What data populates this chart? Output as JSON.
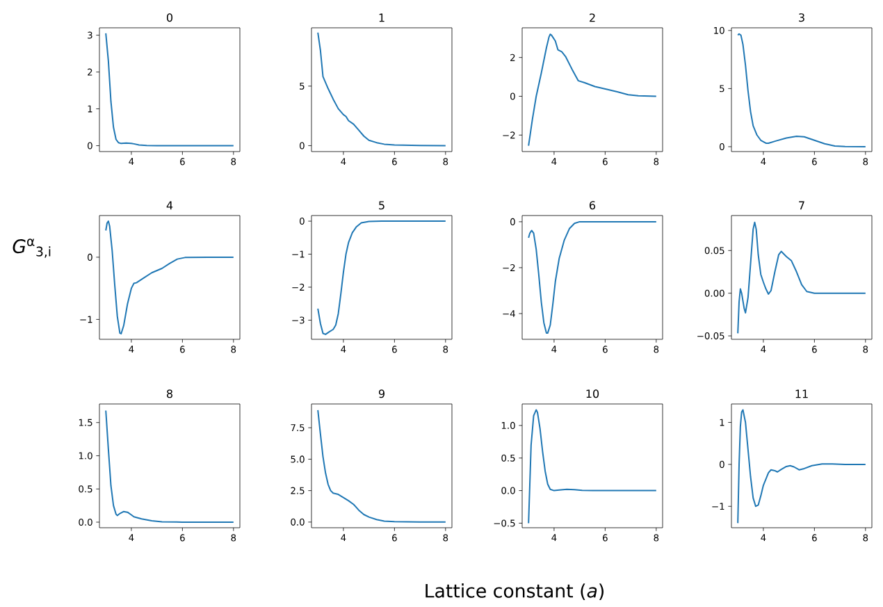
{
  "chart_data": [
    {
      "type": "line",
      "title": "0",
      "color": "#1f77b4",
      "xlim": [
        2.75,
        8.25
      ],
      "ylim": [
        -0.16,
        3.2
      ],
      "xticks": [
        4,
        6,
        8
      ],
      "yticks": [
        0,
        1,
        2,
        3
      ],
      "x": [
        3,
        3.1,
        3.2,
        3.3,
        3.4,
        3.5,
        3.6,
        3.8,
        4.0,
        4.1,
        4.3,
        4.6,
        5,
        6,
        8
      ],
      "values": [
        3.05,
        2.3,
        1.2,
        0.5,
        0.17,
        0.08,
        0.06,
        0.07,
        0.06,
        0.05,
        0.02,
        0.005,
        0,
        0,
        0
      ]
    },
    {
      "type": "line",
      "title": "1",
      "color": "#1f77b4",
      "xlim": [
        2.75,
        8.25
      ],
      "ylim": [
        -0.5,
        9.9
      ],
      "xticks": [
        4,
        6,
        8
      ],
      "yticks": [
        0,
        5
      ],
      "x": [
        3,
        3.1,
        3.2,
        3.4,
        3.6,
        3.8,
        4.0,
        4.1,
        4.2,
        4.4,
        4.6,
        4.8,
        5.0,
        5.3,
        5.6,
        6,
        7,
        8
      ],
      "values": [
        9.5,
        8.0,
        5.8,
        4.8,
        3.9,
        3.1,
        2.6,
        2.45,
        2.1,
        1.8,
        1.3,
        0.8,
        0.45,
        0.25,
        0.12,
        0.05,
        0.01,
        0
      ]
    },
    {
      "type": "line",
      "title": "2",
      "color": "#1f77b4",
      "xlim": [
        2.75,
        8.25
      ],
      "ylim": [
        -2.85,
        3.53
      ],
      "xticks": [
        4,
        6,
        8
      ],
      "yticks": [
        {
          "value": -2,
          "label": "−2"
        },
        0,
        2
      ],
      "x": [
        3,
        3.15,
        3.3,
        3.5,
        3.7,
        3.8,
        3.85,
        3.9,
        4.05,
        4.15,
        4.3,
        4.45,
        4.7,
        4.95,
        5.2,
        5.6,
        6.1,
        6.5,
        6.9,
        7.3,
        8
      ],
      "values": [
        -2.55,
        -1.2,
        0.0,
        1.2,
        2.5,
        3.05,
        3.2,
        3.15,
        2.85,
        2.4,
        2.3,
        2.05,
        1.4,
        0.8,
        0.7,
        0.5,
        0.35,
        0.22,
        0.08,
        0.03,
        0
      ]
    },
    {
      "type": "line",
      "title": "3",
      "color": "#1f77b4",
      "xlim": [
        2.75,
        8.25
      ],
      "ylim": [
        -0.42,
        10.23
      ],
      "xticks": [
        4,
        6,
        8
      ],
      "yticks": [
        0,
        5,
        10
      ],
      "x": [
        3,
        3.05,
        3.12,
        3.2,
        3.3,
        3.4,
        3.5,
        3.6,
        3.75,
        3.9,
        4.1,
        4.2,
        4.5,
        4.9,
        5.3,
        5.6,
        6,
        6.4,
        6.8,
        7.2,
        8
      ],
      "values": [
        9.6,
        9.7,
        9.6,
        8.8,
        7.0,
        4.8,
        3.0,
        1.8,
        1.0,
        0.55,
        0.3,
        0.3,
        0.5,
        0.75,
        0.9,
        0.85,
        0.55,
        0.25,
        0.06,
        0.01,
        0
      ]
    },
    {
      "type": "line",
      "title": "4",
      "ylabel": "*G*$^{α}$$_{3,i}$",
      "color": "#1f77b4",
      "xlim": [
        2.75,
        8.25
      ],
      "ylim": [
        -1.32,
        0.67
      ],
      "xticks": [
        4,
        6,
        8
      ],
      "yticks": [
        {
          "value": -1,
          "label": "−1"
        },
        0
      ],
      "x": [
        3,
        3.05,
        3.1,
        3.15,
        3.25,
        3.35,
        3.45,
        3.55,
        3.6,
        3.7,
        3.85,
        4.0,
        4.1,
        4.2,
        4.5,
        4.8,
        5.2,
        5.5,
        5.8,
        6.1,
        7,
        8
      ],
      "values": [
        0.43,
        0.55,
        0.58,
        0.5,
        0.1,
        -0.45,
        -0.95,
        -1.22,
        -1.23,
        -1.1,
        -0.75,
        -0.5,
        -0.42,
        -0.41,
        -0.33,
        -0.25,
        -0.18,
        -0.1,
        -0.03,
        -0.005,
        0,
        0
      ]
    },
    {
      "type": "line",
      "title": "5",
      "color": "#1f77b4",
      "xlim": [
        2.75,
        8.25
      ],
      "ylim": [
        -3.58,
        0.17
      ],
      "xticks": [
        4,
        6,
        8
      ],
      "yticks": [
        {
          "value": -3,
          "label": "−3"
        },
        {
          "value": -2,
          "label": "−2"
        },
        {
          "value": -1,
          "label": "−1"
        },
        0
      ],
      "x": [
        3,
        3.1,
        3.2,
        3.3,
        3.45,
        3.6,
        3.7,
        3.8,
        3.9,
        4.0,
        4.1,
        4.2,
        4.35,
        4.5,
        4.7,
        5.0,
        5.5,
        8
      ],
      "values": [
        -2.65,
        -3.1,
        -3.4,
        -3.43,
        -3.35,
        -3.28,
        -3.15,
        -2.8,
        -2.2,
        -1.55,
        -1.0,
        -0.65,
        -0.35,
        -0.18,
        -0.05,
        -0.01,
        0,
        0
      ]
    },
    {
      "type": "line",
      "title": "6",
      "color": "#1f77b4",
      "xlim": [
        2.75,
        8.25
      ],
      "ylim": [
        -5.12,
        0.27
      ],
      "xticks": [
        4,
        6,
        8
      ],
      "yticks": [
        {
          "value": -4,
          "label": "−4"
        },
        {
          "value": -2,
          "label": "−2"
        },
        0
      ],
      "x": [
        3,
        3.05,
        3.12,
        3.2,
        3.3,
        3.4,
        3.5,
        3.6,
        3.7,
        3.75,
        3.85,
        3.95,
        4.05,
        4.2,
        4.4,
        4.6,
        4.8,
        5.0,
        6,
        8
      ],
      "values": [
        -0.7,
        -0.5,
        -0.38,
        -0.5,
        -1.2,
        -2.3,
        -3.5,
        -4.4,
        -4.85,
        -4.85,
        -4.5,
        -3.6,
        -2.6,
        -1.6,
        -0.8,
        -0.3,
        -0.07,
        0,
        0,
        0
      ]
    },
    {
      "type": "line",
      "title": "7",
      "color": "#1f77b4",
      "xlim": [
        2.75,
        8.25
      ],
      "ylim": [
        -0.054,
        0.091
      ],
      "xticks": [
        4,
        6,
        8
      ],
      "yticks": [
        {
          "value": -0.05,
          "label": "−0.05"
        },
        {
          "value": 0,
          "label": "0.00"
        },
        0.05
      ],
      "x": [
        3,
        3.05,
        3.1,
        3.15,
        3.25,
        3.3,
        3.4,
        3.5,
        3.6,
        3.66,
        3.72,
        3.8,
        3.9,
        4.0,
        4.1,
        4.2,
        4.3,
        4.45,
        4.6,
        4.7,
        4.8,
        4.9,
        5.1,
        5.3,
        5.5,
        5.7,
        6,
        8
      ],
      "values": [
        -0.047,
        -0.01,
        0.005,
        0.0,
        -0.018,
        -0.023,
        -0.005,
        0.035,
        0.075,
        0.083,
        0.075,
        0.045,
        0.022,
        0.013,
        0.005,
        -0.001,
        0.003,
        0.025,
        0.045,
        0.049,
        0.046,
        0.043,
        0.038,
        0.025,
        0.01,
        0.002,
        0,
        0
      ]
    },
    {
      "type": "line",
      "title": "8",
      "color": "#1f77b4",
      "xlim": [
        2.75,
        8.25
      ],
      "ylim": [
        -0.084,
        1.78
      ],
      "xticks": [
        4,
        6,
        8
      ],
      "yticks": [
        {
          "value": 0,
          "label": "0.0"
        },
        0.5,
        {
          "value": 1,
          "label": "1.0"
        },
        1.5
      ],
      "x": [
        3,
        3.1,
        3.2,
        3.3,
        3.4,
        3.45,
        3.55,
        3.7,
        3.85,
        4.0,
        4.1,
        4.4,
        4.8,
        5.2,
        6,
        8
      ],
      "values": [
        1.68,
        1.1,
        0.55,
        0.25,
        0.12,
        0.1,
        0.13,
        0.16,
        0.15,
        0.11,
        0.08,
        0.05,
        0.02,
        0.005,
        0,
        0
      ]
    },
    {
      "type": "line",
      "title": "9",
      "xlabel": "Lattice constant (*a*)",
      "color": "#1f77b4",
      "xlim": [
        2.75,
        8.25
      ],
      "ylim": [
        -0.45,
        9.39
      ],
      "xticks": [
        4,
        6,
        8
      ],
      "yticks": [
        {
          "value": 0,
          "label": "0.0"
        },
        2.5,
        {
          "value": 5,
          "label": "5.0"
        },
        7.5
      ],
      "x": [
        3,
        3.1,
        3.2,
        3.3,
        3.4,
        3.5,
        3.6,
        3.8,
        4.0,
        4.2,
        4.4,
        4.6,
        4.8,
        5.0,
        5.3,
        5.6,
        6,
        7,
        8
      ],
      "values": [
        8.9,
        7.0,
        5.2,
        3.9,
        3.0,
        2.5,
        2.3,
        2.2,
        1.95,
        1.7,
        1.4,
        0.95,
        0.6,
        0.4,
        0.2,
        0.08,
        0.03,
        0,
        0
      ]
    },
    {
      "type": "line",
      "title": "10",
      "color": "#1f77b4",
      "xlim": [
        2.75,
        8.25
      ],
      "ylim": [
        -0.57,
        1.33
      ],
      "xticks": [
        4,
        6,
        8
      ],
      "yticks": [
        {
          "value": -0.5,
          "label": "−0.5"
        },
        {
          "value": 0,
          "label": "0.0"
        },
        0.5,
        {
          "value": 1,
          "label": "1.0"
        }
      ],
      "x": [
        3,
        3.05,
        3.1,
        3.2,
        3.3,
        3.35,
        3.45,
        3.55,
        3.65,
        3.75,
        3.85,
        4.0,
        4.2,
        4.5,
        4.8,
        5.1,
        5.5,
        8
      ],
      "values": [
        -0.5,
        0.1,
        0.7,
        1.15,
        1.24,
        1.2,
        0.95,
        0.6,
        0.3,
        0.1,
        0.02,
        0.0,
        0.01,
        0.02,
        0.015,
        0.003,
        0,
        0
      ]
    },
    {
      "type": "line",
      "title": "11",
      "color": "#1f77b4",
      "xlim": [
        2.75,
        8.25
      ],
      "ylim": [
        -1.51,
        1.44
      ],
      "xticks": [
        4,
        6,
        8
      ],
      "yticks": [
        {
          "value": -1,
          "label": "−1"
        },
        0,
        1
      ],
      "x": [
        3,
        3.05,
        3.1,
        3.15,
        3.2,
        3.3,
        3.4,
        3.5,
        3.6,
        3.7,
        3.8,
        3.9,
        4.0,
        4.2,
        4.3,
        4.45,
        4.55,
        4.7,
        4.9,
        5.05,
        5.2,
        5.4,
        5.6,
        5.9,
        6.3,
        6.7,
        7.2,
        8
      ],
      "values": [
        -1.4,
        0.0,
        0.9,
        1.25,
        1.3,
        1.0,
        0.35,
        -0.3,
        -0.8,
        -1.0,
        -0.97,
        -0.75,
        -0.5,
        -0.2,
        -0.13,
        -0.15,
        -0.18,
        -0.12,
        -0.05,
        -0.03,
        -0.06,
        -0.13,
        -0.1,
        -0.03,
        0.01,
        0.01,
        0.0,
        0
      ]
    }
  ]
}
